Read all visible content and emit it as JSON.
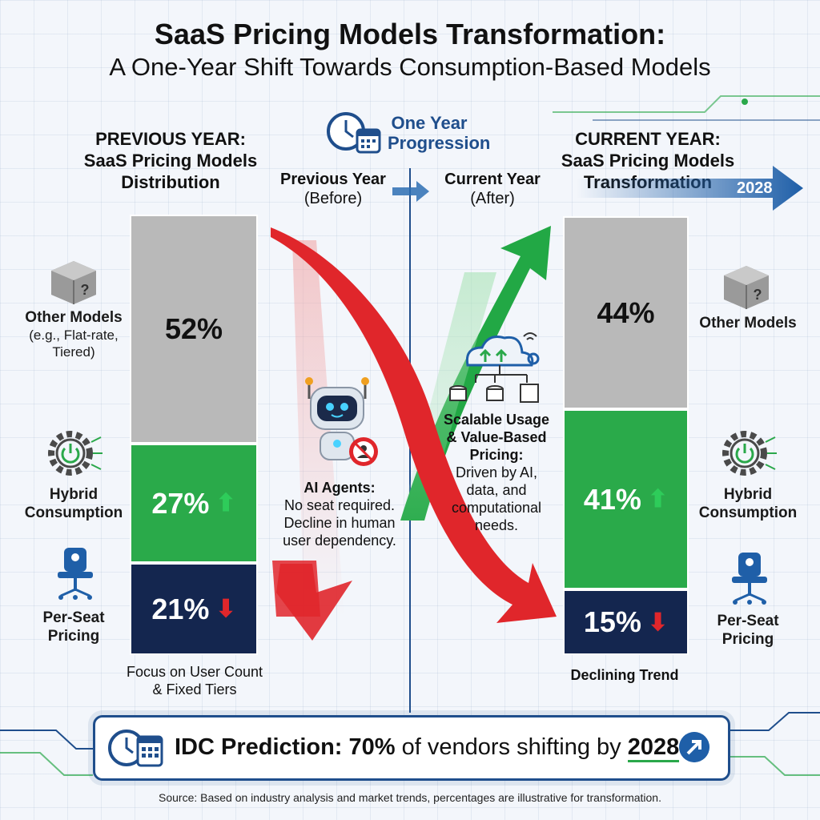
{
  "title": "SaaS Pricing Models Transformation:",
  "subtitle": "A One-Year Shift Towards Consumption-Based Models",
  "progression_label": [
    "One Year",
    "Progression"
  ],
  "previous": {
    "heading": [
      "PREVIOUS YEAR:",
      "SaaS Pricing Models",
      "Distribution"
    ],
    "col_label": [
      "Previous Year",
      "(Before)"
    ],
    "footer": [
      "Focus on User Count",
      "& Fixed Tiers"
    ]
  },
  "current": {
    "heading": [
      "CURRENT YEAR:",
      "SaaS Pricing Models",
      "Transformation"
    ],
    "col_label": [
      "Current Year",
      "(After)"
    ],
    "badge": "2028",
    "footer": "Declining Trend"
  },
  "labels": {
    "other_prev": "Other Models",
    "other_prev_sub": [
      "(e.g., Flat-rate,",
      "Tiered)"
    ],
    "other_cur": "Other Models",
    "hybrid": [
      "Hybrid",
      "Consumption"
    ],
    "seat": [
      "Per-Seat",
      "Pricing"
    ]
  },
  "ai_note": {
    "title": "AI Agents:",
    "lines": [
      "No seat required.",
      "Decline in human",
      "user dependency."
    ]
  },
  "scalable_note": {
    "title": [
      "Scalable Usage",
      "& Value-Based",
      "Pricing:"
    ],
    "lines": [
      "Driven by AI,",
      "data, and",
      "computational",
      "needs."
    ]
  },
  "banner": {
    "label": "IDC Prediction:",
    "value": "70%",
    "text": "of vendors shifting by",
    "year": "2028"
  },
  "source": "Source: Based on industry analysis and market trends, percentages are illustrative for transformation.",
  "chart_data": [
    {
      "type": "bar",
      "stacked": true,
      "category": "PREVIOUS YEAR",
      "unit": "%",
      "segments": [
        {
          "name": "Other Models",
          "value": 52,
          "display": "52%",
          "color": "#b9b9b9",
          "text_color": "#111111",
          "trend": ""
        },
        {
          "name": "Hybrid Consumption",
          "value": 27,
          "display": "27%",
          "color": "#2aaa4a",
          "text_color": "#ffffff",
          "trend": "up"
        },
        {
          "name": "Per-Seat Pricing",
          "value": 21,
          "display": "21%",
          "color": "#14264f",
          "text_color": "#ffffff",
          "trend": "down"
        }
      ]
    },
    {
      "type": "bar",
      "stacked": true,
      "category": "CURRENT YEAR",
      "unit": "%",
      "segments": [
        {
          "name": "Other Models",
          "value": 44,
          "display": "44%",
          "color": "#b9b9b9",
          "text_color": "#111111",
          "trend": ""
        },
        {
          "name": "Hybrid Consumption",
          "value": 41,
          "display": "41%",
          "color": "#2aaa4a",
          "text_color": "#ffffff",
          "trend": "up"
        },
        {
          "name": "Per-Seat Pricing",
          "value": 15,
          "display": "15%",
          "color": "#14264f",
          "text_color": "#ffffff",
          "trend": "down"
        }
      ]
    }
  ],
  "colors": {
    "up": "#2ecc5a",
    "down": "#e0262b",
    "accent": "#1f5fa8",
    "navy": "#14264f"
  },
  "icons": [
    "box-question-icon",
    "power-gear-icon",
    "office-chair-icon",
    "clock-calendar-icon",
    "robot-icon",
    "cloud-data-icon",
    "trend-arrow-icon"
  ]
}
